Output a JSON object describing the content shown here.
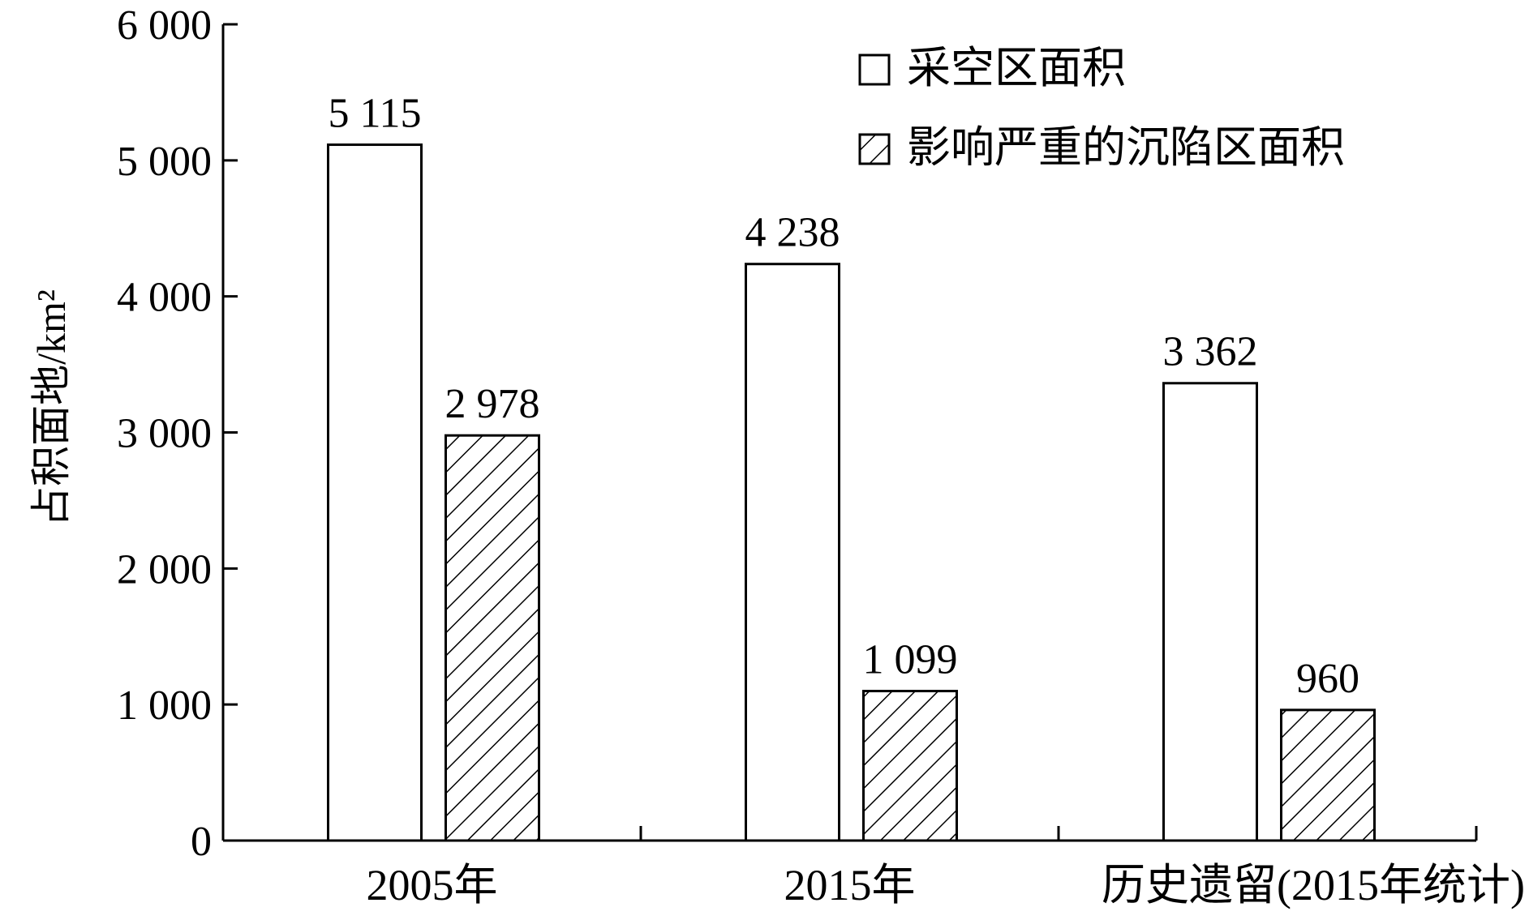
{
  "chart_data": {
    "type": "bar",
    "title": "",
    "xlabel": "",
    "ylabel": "占积面地/km²",
    "ylim": [
      0,
      6000
    ],
    "yticks": [
      0,
      1000,
      2000,
      3000,
      4000,
      5000,
      6000
    ],
    "ytick_labels": [
      "0",
      "1 000",
      "2 000",
      "3 000",
      "4 000",
      "5 000",
      "6 000"
    ],
    "categories": [
      "2005年",
      "2015年",
      "历史遗留(2015年统计)"
    ],
    "series": [
      {
        "name": "采空区面积",
        "pattern": "open",
        "values": [
          5115,
          4238,
          3362
        ],
        "value_labels": [
          "5 115",
          "4 238",
          "3 362"
        ]
      },
      {
        "name": "影响严重的沉陷区面积",
        "pattern": "hatched",
        "values": [
          2978,
          1099,
          960
        ],
        "value_labels": [
          "2 978",
          "1 099",
          "960"
        ]
      }
    ],
    "legend_position": "top-right",
    "grid": false
  }
}
